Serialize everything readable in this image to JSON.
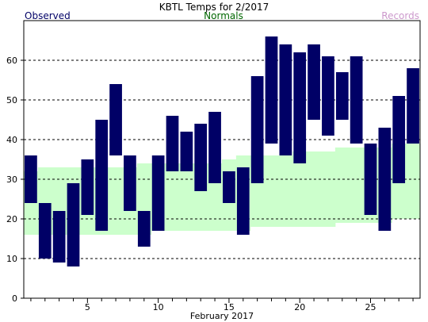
{
  "chart_data": {
    "type": "bar",
    "title": "KBTL Temps for 2/2017",
    "legend": [
      {
        "name": "Observed",
        "color": "#000066"
      },
      {
        "name": "Normals",
        "color": "#006600"
      },
      {
        "name": "Records",
        "color": "#cc99cc"
      }
    ],
    "xlabel": "February 2017",
    "ylabel": "",
    "xlim": [
      0.5,
      28.5
    ],
    "ylim": [
      0,
      70
    ],
    "x_ticks": [
      5,
      10,
      15,
      20,
      25
    ],
    "y_ticks": [
      0,
      10,
      20,
      30,
      40,
      50,
      60
    ],
    "grid": "horizontal dashed",
    "days": [
      1,
      2,
      3,
      4,
      5,
      6,
      7,
      8,
      9,
      10,
      11,
      12,
      13,
      14,
      15,
      16,
      17,
      18,
      19,
      20,
      21,
      22,
      23,
      24,
      25,
      26,
      27,
      28
    ],
    "observed_high": [
      36,
      24,
      22,
      29,
      35,
      45,
      54,
      36,
      22,
      36,
      46,
      42,
      44,
      47,
      32,
      33,
      56,
      66,
      64,
      62,
      64,
      61,
      57,
      61,
      39,
      43,
      51,
      58
    ],
    "observed_low": [
      24,
      10,
      9,
      8,
      21,
      17,
      36,
      22,
      13,
      17,
      32,
      32,
      27,
      29,
      24,
      16,
      29,
      39,
      36,
      34,
      45,
      41,
      45,
      39,
      21,
      17,
      29,
      39
    ],
    "normal_high": [
      32,
      33,
      33,
      33,
      33,
      33,
      33,
      33,
      34,
      34,
      34,
      34,
      34,
      34,
      35,
      36,
      36,
      36,
      36,
      37,
      37,
      37,
      38,
      38,
      38,
      38,
      39,
      39
    ],
    "normal_low": [
      16,
      16,
      16,
      16,
      16,
      16,
      16,
      16,
      16,
      17,
      17,
      17,
      17,
      17,
      17,
      17,
      18,
      18,
      18,
      18,
      18,
      18,
      19,
      19,
      19,
      19,
      20,
      20
    ],
    "colors": {
      "observed_bar": "#000066",
      "normals_band": "#ccffcc",
      "gridline": "#000000",
      "axis": "#000000"
    }
  }
}
